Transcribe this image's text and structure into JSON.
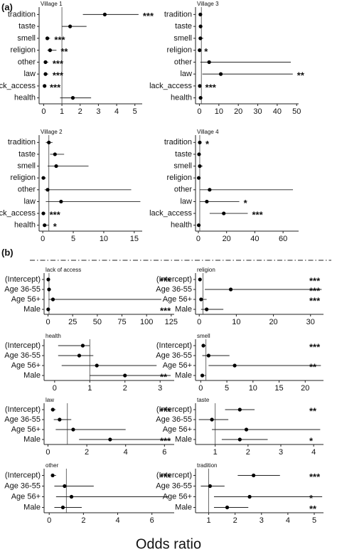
{
  "panel_labels": [
    "(a)",
    "(b)"
  ],
  "x_label": "Odds ratio",
  "chart_data": [
    {
      "type": "forest",
      "title": "Village 1",
      "categories": [
        "tradition",
        "taste",
        "smell",
        "religion",
        "other",
        "law",
        "lack_access",
        "health"
      ],
      "values": [
        3.35,
        1.45,
        0.2,
        0.35,
        0.1,
        0.1,
        0.05,
        1.6
      ],
      "ci_low": [
        2.15,
        1.0,
        0.1,
        0.2,
        0.05,
        0.05,
        0.02,
        0.9
      ],
      "ci_high": [
        5.2,
        2.35,
        0.35,
        0.7,
        0.25,
        0.25,
        0.1,
        2.6
      ],
      "annotations": [
        "***",
        null,
        "***",
        "**",
        "***",
        "***",
        "***",
        null
      ],
      "xlim": [
        -0.25,
        5.4
      ],
      "xticks": [
        0,
        1,
        2,
        3,
        4,
        5
      ],
      "reference": 1,
      "color": "#000000"
    },
    {
      "type": "forest",
      "title": "Village 3",
      "categories": [
        "tradition",
        "taste",
        "smell",
        "religion",
        "other",
        "law",
        "lack_access",
        "health"
      ],
      "values": [
        0.5,
        0.6,
        0.5,
        0.1,
        5,
        11,
        0.2,
        0.6
      ],
      "ci_low": [
        0.3,
        0.3,
        0.2,
        0.05,
        0.5,
        1.5,
        0.05,
        0.2
      ],
      "ci_high": [
        1,
        1.2,
        2,
        0.3,
        47,
        48,
        0.8,
        1.2
      ],
      "annotations": [
        null,
        null,
        null,
        "*",
        null,
        "**",
        "***",
        null
      ],
      "xlim": [
        -2,
        51
      ],
      "xticks": [
        0,
        10,
        20,
        30,
        40,
        50
      ],
      "reference": 1,
      "color": "#000000"
    },
    {
      "type": "forest",
      "title": "Village 2",
      "categories": [
        "tradition",
        "taste",
        "smell",
        "religion",
        "other",
        "law",
        "lack_access",
        "health"
      ],
      "values": [
        1,
        2,
        2.2,
        0.1,
        0.8,
        3,
        0.1,
        0.3
      ],
      "ci_low": [
        0.5,
        1.2,
        0.8,
        0.05,
        0.3,
        0.5,
        0.05,
        0.1
      ],
      "ci_high": [
        1.6,
        3.5,
        7.5,
        0.5,
        14.5,
        16,
        0.4,
        1.0
      ],
      "annotations": [
        null,
        null,
        null,
        null,
        null,
        null,
        "***",
        "*"
      ],
      "xlim": [
        -0.6,
        16.3
      ],
      "xticks": [
        0,
        5,
        10,
        15
      ],
      "reference": 1,
      "color": "#000000"
    },
    {
      "type": "forest",
      "title": "Village 4",
      "categories": [
        "tradition",
        "taste",
        "smell",
        "religion",
        "other",
        "law",
        "lack_access",
        "health"
      ],
      "values": [
        1,
        0.5,
        1,
        0.3,
        8,
        6,
        18,
        0.3
      ],
      "ci_low": [
        0.5,
        0.2,
        0.3,
        0.1,
        1,
        1,
        8,
        0.1
      ],
      "ci_high": [
        2,
        1.3,
        3,
        1,
        67,
        29,
        35,
        1
      ],
      "annotations": [
        "*",
        null,
        null,
        null,
        null,
        "*",
        "***",
        null
      ],
      "xlim": [
        -2,
        71
      ],
      "xticks": [
        0,
        20,
        40,
        60
      ],
      "reference": 1,
      "color": "#000000"
    },
    {
      "type": "forest",
      "title": "lack of access",
      "categories": [
        "(Intercept)",
        "Age 36-55",
        "Age 56+",
        "Male"
      ],
      "values": [
        0.3,
        1,
        5,
        0.2
      ],
      "ci_low": [
        0.1,
        0.3,
        0.5,
        0.05
      ],
      "ci_high": [
        1,
        3,
        115,
        0.8
      ],
      "annotations": [
        "***",
        null,
        null,
        "***"
      ],
      "xlim": [
        -4,
        128
      ],
      "xticks": [
        0,
        25,
        50,
        75,
        100,
        125
      ],
      "reference": 1,
      "color": "#000000"
    },
    {
      "type": "forest",
      "title": "religion",
      "categories": [
        "(Intercept)",
        "Age 36-55",
        "Age 56+",
        "Male"
      ],
      "values": [
        0.2,
        8.5,
        0.5,
        2
      ],
      "ci_low": [
        0.1,
        1.5,
        0.1,
        0.5
      ],
      "ci_high": [
        0.5,
        33,
        2,
        6.5
      ],
      "annotations": [
        "***",
        "***",
        "***",
        null
      ],
      "xlim": [
        -1,
        33.5
      ],
      "xticks": [
        0,
        10,
        20,
        30
      ],
      "reference": 1,
      "color": "#000000"
    },
    {
      "type": "forest",
      "title": "health",
      "categories": [
        "(Intercept)",
        "Age 36-55",
        "Age 56+",
        "Male"
      ],
      "values": [
        0.8,
        0.7,
        1.2,
        2.0
      ],
      "ci_low": [
        0.1,
        0.1,
        0.2,
        1.0
      ],
      "ci_high": [
        1.0,
        1.1,
        2.9,
        3.3
      ],
      "annotations": [
        null,
        null,
        null,
        "**"
      ],
      "xlim": [
        -0.3,
        3.4
      ],
      "xticks": [
        0,
        1,
        2,
        3
      ],
      "reference": 1,
      "color": "#000000"
    },
    {
      "type": "forest",
      "title": "smell",
      "categories": [
        "(Intercept)",
        "Age 36-55",
        "Age 56+",
        "Male"
      ],
      "values": [
        0.5,
        1.5,
        6.5,
        0.3
      ],
      "ci_low": [
        0.2,
        0.3,
        1.5,
        0.1
      ],
      "ci_high": [
        1.0,
        5.5,
        23,
        1
      ],
      "annotations": [
        "***",
        null,
        "**",
        null
      ],
      "xlim": [
        -1,
        23.5
      ],
      "xticks": [
        0,
        5,
        10,
        15,
        20
      ],
      "reference": 1,
      "color": "#000000"
    },
    {
      "type": "forest",
      "title": "law",
      "categories": [
        "(Intercept)",
        "Age 36-55",
        "Age 56+",
        "Male"
      ],
      "values": [
        0.25,
        0.6,
        1.3,
        3.2
      ],
      "ci_low": [
        0.15,
        0.3,
        0.4,
        1.6
      ],
      "ci_high": [
        0.4,
        1.2,
        4,
        6.3
      ],
      "annotations": [
        "***",
        null,
        null,
        "***"
      ],
      "xlim": [
        -0.2,
        6.5
      ],
      "xticks": [
        0,
        2,
        4,
        6
      ],
      "reference": 1,
      "color": "#000000"
    },
    {
      "type": "forest",
      "title": "taste",
      "categories": [
        "(Intercept)",
        "Age 36-55",
        "Age 56+",
        "Male"
      ],
      "values": [
        1.75,
        0.9,
        1.95,
        1.75
      ],
      "ci_low": [
        1.3,
        0.5,
        0.9,
        1.2
      ],
      "ci_high": [
        2.2,
        1.4,
        4.2,
        2.6
      ],
      "annotations": [
        "**",
        null,
        null,
        "*"
      ],
      "xlim": [
        0.4,
        4.3
      ],
      "xticks": [
        1,
        2,
        3,
        4
      ],
      "reference": 1,
      "color": "#000000"
    },
    {
      "type": "forest",
      "title": "other",
      "categories": [
        "(Intercept)",
        "Age 36-55",
        "Age 56+",
        "Male"
      ],
      "values": [
        0.2,
        0.9,
        1.3,
        0.8
      ],
      "ci_low": [
        0.1,
        0.3,
        0.4,
        0.3
      ],
      "ci_high": [
        0.4,
        2.6,
        7,
        1.9
      ],
      "annotations": [
        "***",
        null,
        null,
        null
      ],
      "xlim": [
        -0.3,
        7.3
      ],
      "xticks": [
        0,
        2,
        4,
        6
      ],
      "reference": 1,
      "color": "#000000"
    },
    {
      "type": "forest",
      "title": "tradition",
      "categories": [
        "(Intercept)",
        "Age 36-55",
        "Age 56+",
        "Male"
      ],
      "values": [
        2.7,
        1.05,
        2.55,
        1.7
      ],
      "ci_low": [
        2.1,
        0.7,
        1.2,
        1.2
      ],
      "ci_high": [
        3.7,
        1.6,
        5.3,
        2.5
      ],
      "annotations": [
        "***",
        null,
        "*",
        "**"
      ],
      "xlim": [
        0.5,
        5.35
      ],
      "xticks": [
        1,
        2,
        3,
        4,
        5
      ],
      "reference": 1,
      "color": "#000000"
    }
  ]
}
